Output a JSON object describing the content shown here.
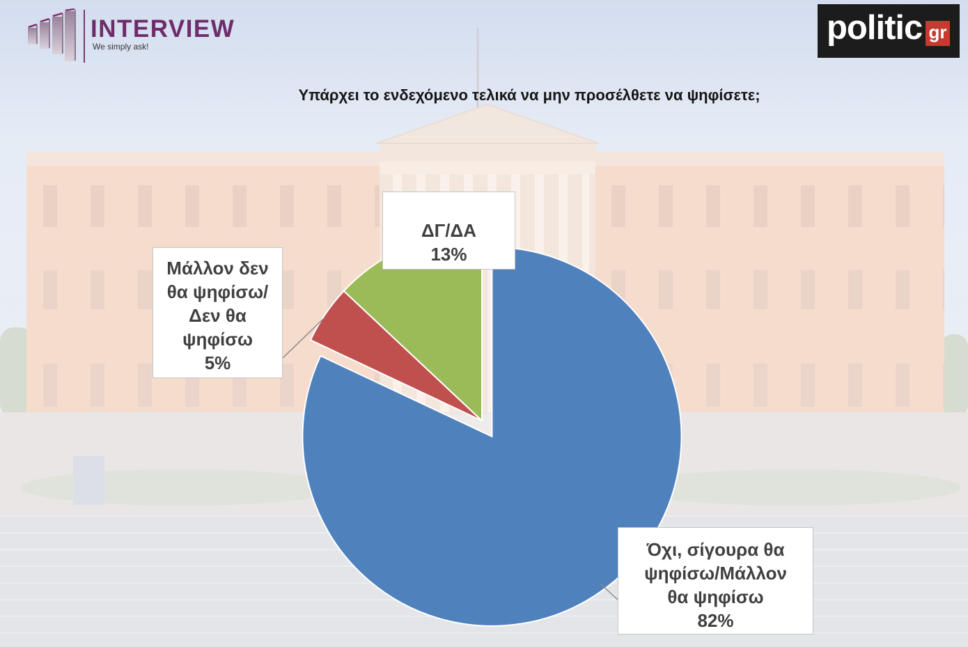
{
  "header": {
    "brand_left": {
      "name": "INTERVIEW",
      "tagline": "We simply ask!"
    },
    "brand_right": {
      "name": "politic",
      "suffix": "gr"
    }
  },
  "chart_data": {
    "type": "pie",
    "title": "Υπάρχει το ενδεχόμενο τελικά να μην προσέλθετε να ψηφίσετε;",
    "categories": [
      "Όχι, σίγουρα θα ψηφίσω/Μάλλον θα ψηφίσω",
      "Μάλλον δεν θα ψηφίσω/Δεν θα ψηφίσω",
      "ΔΓ/ΔΑ"
    ],
    "values": [
      82,
      5,
      13
    ],
    "data_labels": [
      "82%",
      "5%",
      "13%"
    ],
    "colors": [
      "#4f81bd",
      "#c0504d",
      "#9bbb59"
    ],
    "explode": [
      true,
      false,
      false
    ]
  }
}
